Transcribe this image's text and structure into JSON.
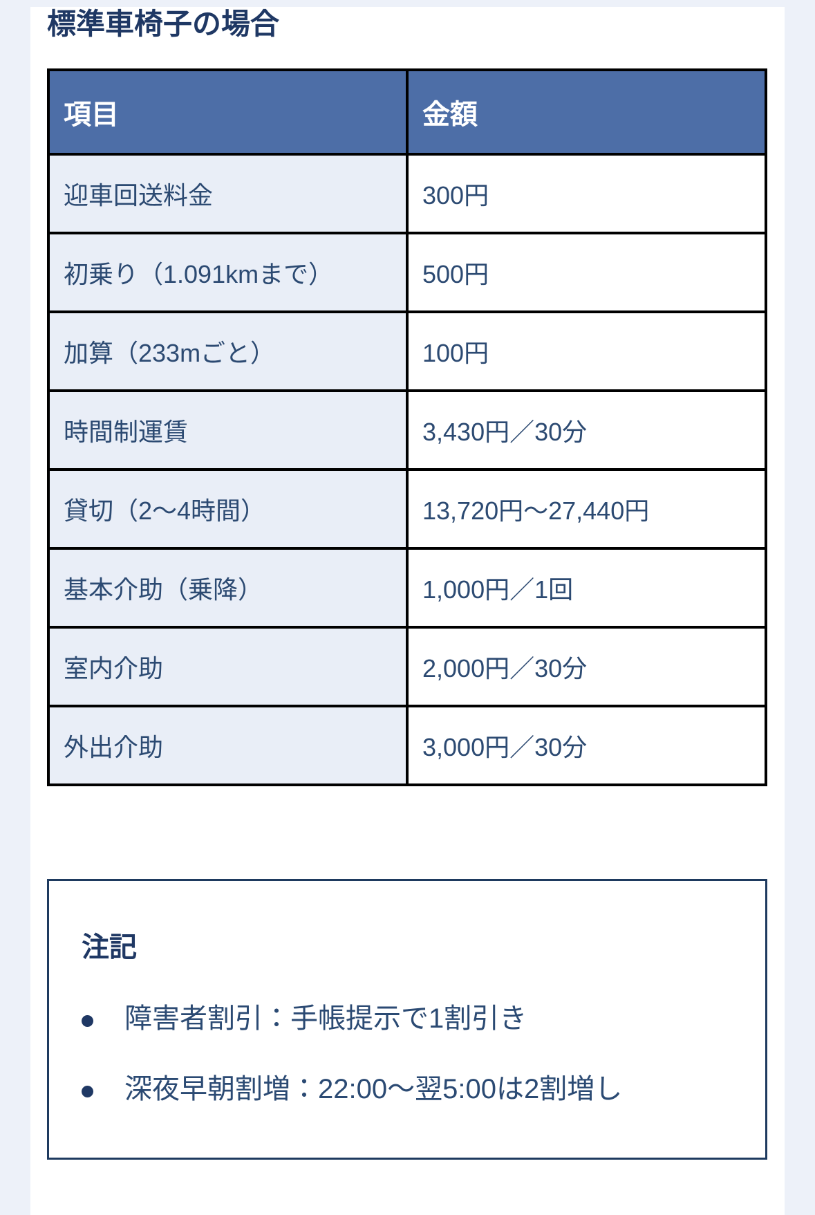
{
  "page": {
    "title": "標準車椅子の場合"
  },
  "table": {
    "headers": [
      "項目",
      "金額"
    ],
    "rows": [
      {
        "item": "迎車回送料金",
        "amount": "300円"
      },
      {
        "item": "初乗り（1.091kmまで）",
        "amount": "500円"
      },
      {
        "item": "加算（233mごと）",
        "amount": "100円"
      },
      {
        "item": "時間制運賃",
        "amount": "3,430円／30分"
      },
      {
        "item": "貸切（2～4時間）",
        "amount": "13,720円～27,440円"
      },
      {
        "item": "基本介助（乗降）",
        "amount": "1,000円／1回"
      },
      {
        "item": "室内介助",
        "amount": "2,000円／30分"
      },
      {
        "item": "外出介助",
        "amount": "3,000円／30分"
      }
    ]
  },
  "notes": {
    "heading": "注記",
    "items": [
      "障害者割引：手帳提示で1割引き",
      "深夜早朝割増：22:00～翌5:00は2割増し"
    ]
  },
  "colors": {
    "page_background": "#EDF1F9",
    "content_background": "#FFFFFF",
    "title_text": "#1F3864",
    "table_header_background": "#4D6EA7",
    "table_header_text": "#FFFFFF",
    "table_label_cell_background": "#E9EEF7",
    "table_border": "#000000",
    "cell_text": "#2C4A72",
    "note_box_border": "#1E3A5F",
    "note_text": "#2B4A73"
  }
}
